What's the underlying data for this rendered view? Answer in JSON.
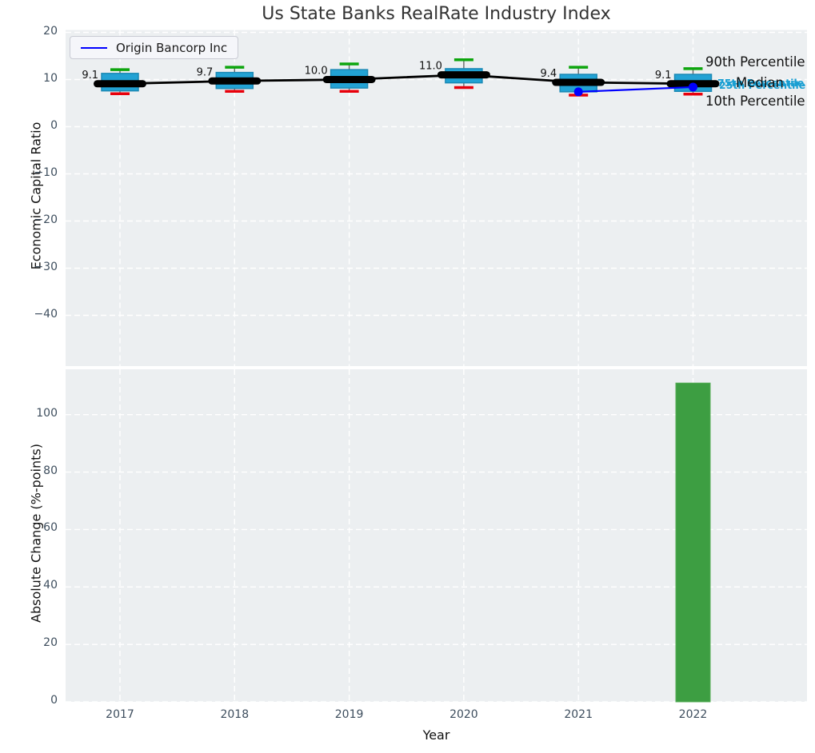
{
  "title": "Us State Banks RealRate Industry Index",
  "legend": {
    "label": "Origin Bancorp Inc"
  },
  "right_labels": {
    "p90": "90th Percentile",
    "p75": "75th Percentile",
    "median": "Median",
    "p25": "25th Percentile",
    "p10": "10th Percentile"
  },
  "colors": {
    "panel_bg": "#eceff1",
    "grid": "#ffffff",
    "box_fill": "#22a2d4",
    "box_edge": "#1b89b4",
    "whisker": "#666666",
    "cap_high": "#0da50d",
    "cap_low": "#e8000b",
    "median_line": "#000000",
    "company_line": "#0000ff",
    "bar_fill": "#3d9e42",
    "tick_text": "#3d4d5d",
    "cyan_label": "#179ed2",
    "title_text": "#333333"
  },
  "chart_data": [
    {
      "type": "box",
      "panel": "top",
      "ylabel": "Economic Capital Ratio",
      "categories": [
        "2017",
        "2018",
        "2019",
        "2020",
        "2021",
        "2022"
      ],
      "yticks": [
        20,
        10,
        0,
        -10,
        -20,
        -30,
        -40
      ],
      "ylim": [
        -50,
        20.5
      ],
      "grid": true,
      "legend_position": "upper left",
      "boxes": [
        {
          "year": 2017,
          "median": 9.1,
          "q1": 7.6,
          "q3": 11.3,
          "whisker_low": 7.0,
          "whisker_high": 12.1,
          "label": "9.1"
        },
        {
          "year": 2018,
          "median": 9.7,
          "q1": 8.1,
          "q3": 11.5,
          "whisker_low": 7.5,
          "whisker_high": 12.6,
          "label": "9.7"
        },
        {
          "year": 2019,
          "median": 10.0,
          "q1": 8.2,
          "q3": 12.1,
          "whisker_low": 7.5,
          "whisker_high": 13.3,
          "label": "10.0"
        },
        {
          "year": 2020,
          "median": 11.0,
          "q1": 9.3,
          "q3": 12.3,
          "whisker_low": 8.3,
          "whisker_high": 14.2,
          "label": "11.0"
        },
        {
          "year": 2021,
          "median": 9.4,
          "q1": 7.4,
          "q3": 11.1,
          "whisker_low": 6.7,
          "whisker_high": 12.6,
          "label": "9.4"
        },
        {
          "year": 2022,
          "median": 9.1,
          "q1": 7.5,
          "q3": 11.1,
          "whisker_low": 6.9,
          "whisker_high": 12.3,
          "label": "9.1"
        }
      ],
      "series": [
        {
          "name": "Origin Bancorp Inc",
          "x": [
            2021,
            2022
          ],
          "y": [
            7.4,
            8.4
          ]
        }
      ]
    },
    {
      "type": "bar",
      "panel": "bottom",
      "ylabel": "Absolute Change (%-points)",
      "xlabel": "Year",
      "categories": [
        "2017",
        "2018",
        "2019",
        "2020",
        "2021",
        "2022"
      ],
      "values": [
        0,
        0,
        0,
        0,
        0,
        111
      ],
      "yticks": [
        0,
        20,
        40,
        60,
        80,
        100
      ],
      "ylim": [
        0,
        116
      ],
      "grid": true
    }
  ]
}
